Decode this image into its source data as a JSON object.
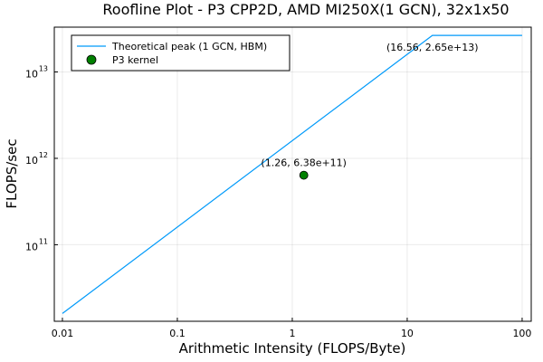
{
  "chart_data": {
    "type": "line",
    "title": "Roofline Plot - P3 CPP2D, AMD MI250X(1 GCN), 32x1x50",
    "xlabel": "Arithmetic Intensity (FLOPS/Byte)",
    "ylabel": "FLOPS/sec",
    "xscale": "log",
    "yscale": "log",
    "xlim": [
      0.0085,
      120
    ],
    "ylim": [
      13000000000.0,
      33000000000000.0
    ],
    "x_ticks": [
      {
        "value": 0.01,
        "label": "0.01"
      },
      {
        "value": 0.1,
        "label": "0.1"
      },
      {
        "value": 1,
        "label": "1"
      },
      {
        "value": 10,
        "label": "10"
      },
      {
        "value": 100,
        "label": "100"
      }
    ],
    "y_ticks": [
      {
        "value": 100000000000.0,
        "base": "10",
        "exp": "11"
      },
      {
        "value": 1000000000000.0,
        "base": "10",
        "exp": "12"
      },
      {
        "value": 10000000000000.0,
        "base": "10",
        "exp": "13"
      }
    ],
    "grid": true,
    "legend_position": "top-left",
    "series": [
      {
        "name": "Theoretical peak (1 GCN, HBM)",
        "kind": "line",
        "color": "#009AFA",
        "x": [
          0.01,
          16.56,
          100
        ],
        "y": [
          16000000000.0,
          26500000000000.0,
          26500000000000.0
        ]
      },
      {
        "name": "P3 kernel",
        "kind": "scatter",
        "color": "#008000",
        "x": [
          1.26
        ],
        "y": [
          638000000000.0
        ]
      }
    ],
    "annotations": [
      {
        "text": "(16.56, 2.65e+13)",
        "x": 16.56,
        "y": 26500000000000.0
      },
      {
        "text": "(1.26, 6.38e+11)",
        "x": 1.26,
        "y": 638000000000.0
      }
    ]
  }
}
